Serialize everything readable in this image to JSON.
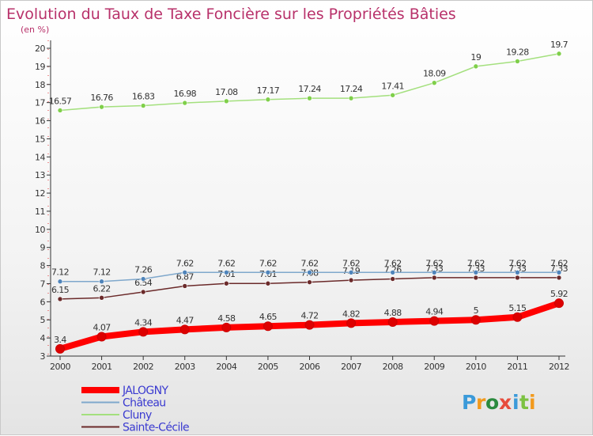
{
  "chart_data": {
    "type": "line",
    "title": "Evolution du Taux de Taxe Foncière sur les Propriétés Bâties",
    "subtitle": "(en %)",
    "xlabel": "",
    "ylabel": "",
    "x": [
      "2000",
      "2001",
      "2002",
      "2003",
      "2004",
      "2005",
      "2006",
      "2007",
      "2008",
      "2009",
      "2010",
      "2011",
      "2012"
    ],
    "y_ticks": [
      "3",
      "4",
      "5",
      "6",
      "7",
      "8",
      "9",
      "10",
      "11",
      "12",
      "13",
      "14",
      "15",
      "16",
      "17",
      "18",
      "19",
      "20"
    ],
    "ylim": [
      3,
      20
    ],
    "grid": false,
    "legend_position": "bottom-left",
    "series": [
      {
        "name": "JALOGNY",
        "color": "#ff0000",
        "point_color": "#dd0000",
        "values": [
          3.4,
          4.07,
          4.34,
          4.47,
          4.58,
          4.65,
          4.72,
          4.82,
          4.88,
          4.94,
          5,
          5.15,
          5.92
        ],
        "labels": [
          "3.4",
          "4.07",
          "4.34",
          "4.47",
          "4.58",
          "4.65",
          "4.72",
          "4.82",
          "4.88",
          "4.94",
          "5",
          "5.15",
          "5.92"
        ]
      },
      {
        "name": "Château",
        "color": "#7fa8cc",
        "point_color": "#4f84ba",
        "values": [
          7.12,
          7.12,
          7.26,
          7.62,
          7.62,
          7.62,
          7.62,
          7.62,
          7.62,
          7.62,
          7.62,
          7.62,
          7.62
        ],
        "labels": [
          "7.12",
          "7.12",
          "7.26",
          "7.62",
          "7.62",
          "7.62",
          "7.62",
          "7.62",
          "7.62",
          "7.62",
          "7.62",
          "7.62",
          "7.62"
        ]
      },
      {
        "name": "Cluny",
        "color": "#a4e07e",
        "point_color": "#7fcf4a",
        "values": [
          16.57,
          16.76,
          16.83,
          16.98,
          17.08,
          17.17,
          17.24,
          17.24,
          17.41,
          18.09,
          19,
          19.28,
          19.7
        ],
        "labels": [
          "16.57",
          "16.76",
          "16.83",
          "16.98",
          "17.08",
          "17.17",
          "17.24",
          "17.24",
          "17.41",
          "18.09",
          "19",
          "19.28",
          "19.7"
        ]
      },
      {
        "name": "Sainte-Cécile",
        "color": "#6b2a2a",
        "point_color": "#6b2a2a",
        "values": [
          6.15,
          6.22,
          6.54,
          6.87,
          7.01,
          7.01,
          7.08,
          7.19,
          7.26,
          7.33,
          7.33,
          7.33,
          7.33
        ],
        "labels": [
          "6.15",
          "6.22",
          "6.54",
          "6.87",
          "7.01",
          "7.01",
          "7.08",
          "7.19",
          "7.26",
          "7.33",
          "7.33",
          "7.33",
          "7.33"
        ]
      }
    ]
  },
  "logo": {
    "text": "Proxiti",
    "colors": [
      "#3b9ad9",
      "#f29a1d",
      "#2b8a3e",
      "#e74c3c",
      "#3b9ad9",
      "#7cc242",
      "#f29a1d"
    ]
  }
}
